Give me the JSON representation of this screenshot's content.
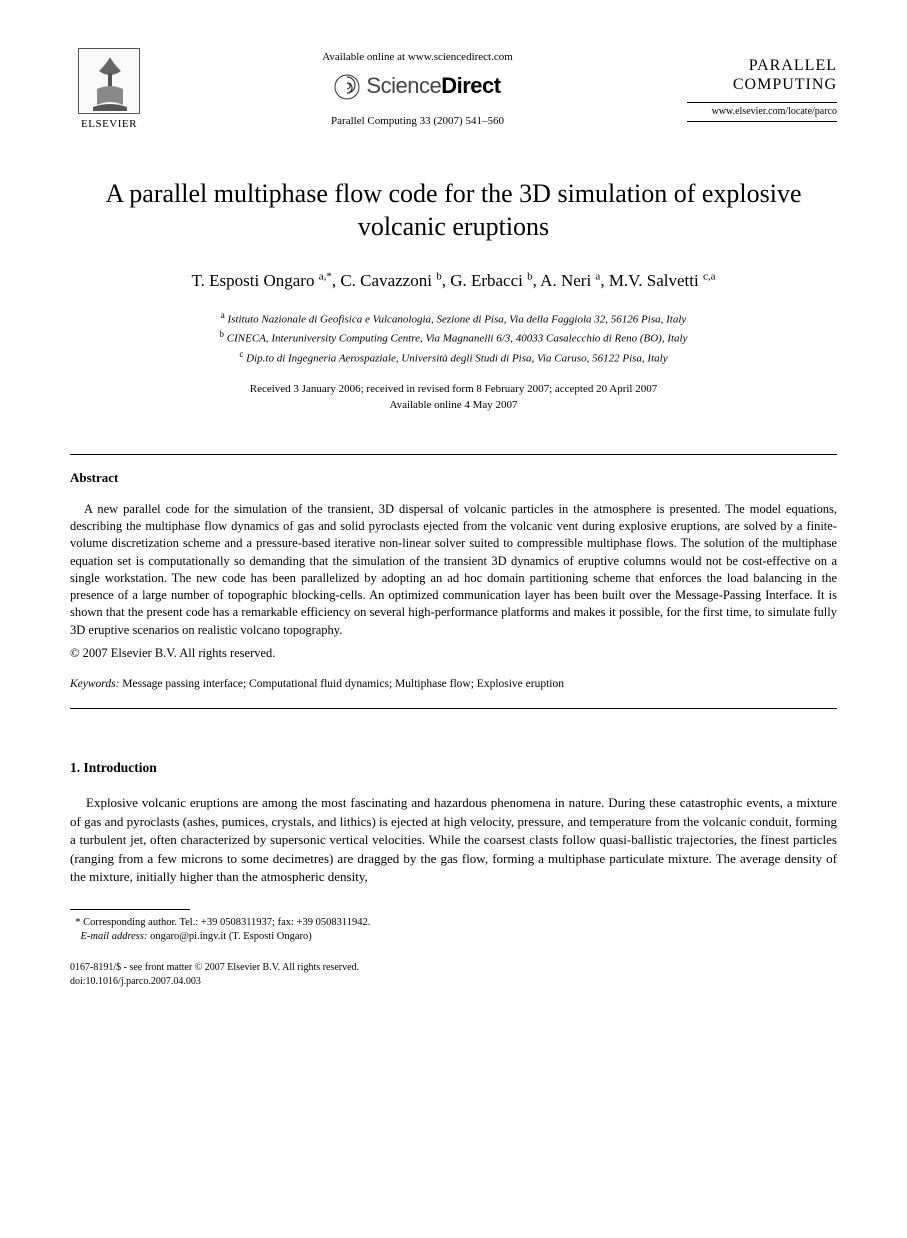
{
  "header": {
    "publisher_name": "ELSEVIER",
    "available_line": "Available online at www.sciencedirect.com",
    "sd_light": "Science",
    "sd_bold": "Direct",
    "citation": "Parallel Computing 33 (2007) 541–560",
    "journal_line1": "PARALLEL",
    "journal_line2": "COMPUTING",
    "journal_url": "www.elsevier.com/locate/parco"
  },
  "title": "A parallel multiphase flow code for the 3D simulation of explosive volcanic eruptions",
  "authors_html": "T. Esposti Ongaro <sup>a,*</sup>, C. Cavazzoni <sup>b</sup>, G. Erbacci <sup>b</sup>, A. Neri <sup>a</sup>, M.V. Salvetti <sup>c,a</sup>",
  "affiliations": [
    {
      "sup": "a",
      "text": "Istituto Nazionale di Geofisica e Vulcanologia, Sezione di Pisa, Via della Faggiola 32, 56126 Pisa, Italy"
    },
    {
      "sup": "b",
      "text": "CINECA, Interuniversity Computing Centre, Via Magnanelli 6/3, 40033 Casalecchio di Reno (BO), Italy"
    },
    {
      "sup": "c",
      "text": "Dip.to di Ingegneria Aerospaziale, Università degli Studi di Pisa, Via Caruso, 56122 Pisa, Italy"
    }
  ],
  "dates": {
    "received": "Received 3 January 2006; received in revised form 8 February 2007; accepted 20 April 2007",
    "online": "Available online 4 May 2007"
  },
  "abstract": {
    "heading": "Abstract",
    "body": "A new parallel code for the simulation of the transient, 3D dispersal of volcanic particles in the atmosphere is presented. The model equations, describing the multiphase flow dynamics of gas and solid pyroclasts ejected from the volcanic vent during explosive eruptions, are solved by a finite-volume discretization scheme and a pressure-based iterative non-linear solver suited to compressible multiphase flows. The solution of the multiphase equation set is computationally so demanding that the simulation of the transient 3D dynamics of eruptive columns would not be cost-effective on a single workstation. The new code has been parallelized by adopting an ad hoc domain partitioning scheme that enforces the load balancing in the presence of a large number of topographic blocking-cells. An optimized communication layer has been built over the Message-Passing Interface. It is shown that the present code has a remarkable efficiency on several high-performance platforms and makes it possible, for the first time, to simulate fully 3D eruptive scenarios on realistic volcano topography.",
    "copyright": "© 2007 Elsevier B.V. All rights reserved."
  },
  "keywords": {
    "label": "Keywords:",
    "text": " Message passing interface; Computational fluid dynamics; Multiphase flow; Explosive eruption"
  },
  "section1": {
    "heading": "1. Introduction",
    "para": "Explosive volcanic eruptions are among the most fascinating and hazardous phenomena in nature. During these catastrophic events, a mixture of gas and pyroclasts (ashes, pumices, crystals, and lithics) is ejected at high velocity, pressure, and temperature from the volcanic conduit, forming a turbulent jet, often characterized by supersonic vertical velocities. While the coarsest clasts follow quasi-ballistic trajectories, the finest particles (ranging from a few microns to some decimetres) are dragged by the gas flow, forming a multiphase particulate mixture. The average density of the mixture, initially higher than the atmospheric density,"
  },
  "footnote": {
    "corr": "Corresponding author. Tel.: +39 0508311937; fax: +39 0508311942.",
    "email_label": "E-mail address:",
    "email": "ongaro@pi.ingv.it",
    "email_paren": "(T. Esposti Ongaro)"
  },
  "footer": {
    "line1": "0167-8191/$ - see front matter © 2007 Elsevier B.V. All rights reserved.",
    "line2": "doi:10.1016/j.parco.2007.04.003"
  }
}
